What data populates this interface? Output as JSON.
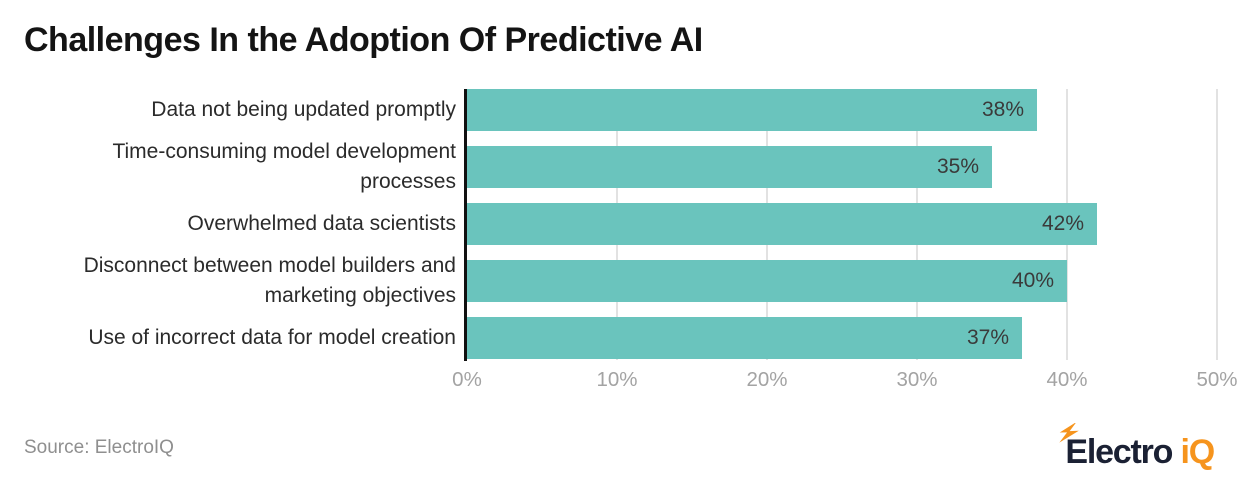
{
  "title": "Challenges In the Adoption Of Predictive AI",
  "source": "Source: ElectroIQ",
  "logo": {
    "part1": "Electro",
    "part2": "iQ",
    "bolt_icon": "lightning-bolt"
  },
  "colors": {
    "bar": "#6AC4BD",
    "axis": "#111111",
    "grid": "#E2E2E2",
    "tick_label": "#A3A3A3",
    "value_label": "#3A3A3A",
    "category_label": "#2B2B2B",
    "title": "#141414",
    "source": "#8F8F8F",
    "logo_navy": "#1B2134",
    "logo_orange": "#F6941D"
  },
  "chart_data": {
    "type": "bar",
    "orientation": "horizontal",
    "title": "Challenges In the Adoption Of Predictive AI",
    "categories": [
      "Data not being updated promptly",
      "Time-consuming model development processes",
      "Overwhelmed data scientists",
      "Disconnect between model builders and marketing objectives",
      "Use of incorrect data for model creation"
    ],
    "values": [
      38,
      35,
      42,
      40,
      37
    ],
    "value_labels": [
      "38%",
      "35%",
      "42%",
      "40%",
      "37%"
    ],
    "xlabel": "",
    "ylabel": "",
    "xlim": [
      0,
      50
    ],
    "xticks": [
      0,
      10,
      20,
      30,
      40,
      50
    ],
    "xtick_labels": [
      "0%",
      "10%",
      "20%",
      "30%",
      "40%",
      "50%"
    ],
    "grid": "vertical-gridlines-on",
    "legend": "none",
    "bar_color": "#6AC4BD"
  }
}
